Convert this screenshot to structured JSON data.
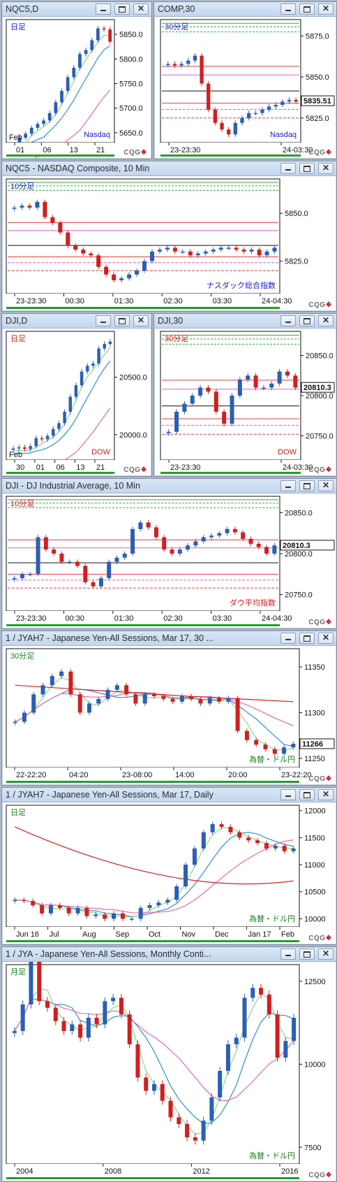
{
  "windows": [
    {
      "id": "nqc5d",
      "title": "NQC5,D",
      "period": "日足",
      "period_color": "#1a1ad6",
      "symbol_label": "Nasdaq",
      "symbol_color": "#1a1ad6",
      "y_ticks": [
        "5850.0",
        "5800.0",
        "5750.0",
        "5700.0",
        "5650.0"
      ],
      "x_ticks": [
        "01",
        "06",
        "13",
        "21"
      ],
      "x_sub": "Feb",
      "last": null
    },
    {
      "id": "comp30",
      "title": "COMP,30",
      "period": "30分足",
      "period_color": "#1a1ad6",
      "symbol_label": "Nasdaq",
      "symbol_color": "#1a1ad6",
      "y_ticks": [
        "5875.0",
        "5850.0",
        "5825.0"
      ],
      "x_ticks": [
        "23-23:30",
        "24-03:30"
      ],
      "last": "5835.51"
    },
    {
      "id": "nqc5-10",
      "title": "NQC5 - NASDAQ Composite, 10 Min",
      "period": "10分足",
      "period_color": "#1a1ad6",
      "symbol_label": "ナスダック総合指数",
      "symbol_color": "#1a1ad6",
      "y_ticks": [
        "5850.0",
        "5825.0"
      ],
      "x_ticks": [
        "23-23:30",
        "00:30",
        "01:30",
        "02:30",
        "03:30",
        "24-04:30"
      ],
      "last": null
    },
    {
      "id": "djid",
      "title": "DJI,D",
      "period": "日足",
      "period_color": "#d21a1a",
      "symbol_label": "DOW",
      "symbol_color": "#d21a1a",
      "y_ticks": [
        "20500.0",
        "20000.0"
      ],
      "x_ticks": [
        "30",
        "01",
        "06",
        "13",
        "21"
      ],
      "x_sub": "Feb",
      "last": null
    },
    {
      "id": "dji30",
      "title": "DJI,30",
      "period": "30分足",
      "period_color": "#d21a1a",
      "symbol_label": "DOW",
      "symbol_color": "#d21a1a",
      "y_ticks": [
        "20850.0",
        "20800.0",
        "20750.0"
      ],
      "x_ticks": [
        "23-23:30",
        "24-03:30"
      ],
      "last": "20810.3"
    },
    {
      "id": "dji10",
      "title": "DJI - DJ Industrial Average, 10 Min",
      "period": "10分足",
      "period_color": "#d21a1a",
      "symbol_label": "ダウ平均指数",
      "symbol_color": "#d21a1a",
      "y_ticks": [
        "20850.0",
        "20800.0",
        "20750.0"
      ],
      "x_ticks": [
        "23-23:30",
        "00:30",
        "01:30",
        "02:30",
        "03:30",
        "24-04:30"
      ],
      "last": "20810.3"
    },
    {
      "id": "jyah7-30",
      "title": "1 / JYAH7 - Japanese Yen-All Sessions, Mar 17, 30 ...",
      "period": "30分足",
      "period_color": "#16801f",
      "symbol_label": "為替・ドル円",
      "symbol_color": "#16801f",
      "y_ticks": [
        "11350",
        "11300",
        "11250"
      ],
      "x_ticks": [
        "22-22:20",
        "04:20",
        "23-08:00",
        "14:00",
        "20:00",
        "23-22:20"
      ],
      "last": "11266"
    },
    {
      "id": "jyah7-d",
      "title": "1 / JYAH7 - Japanese Yen-All Sessions, Mar 17, Daily",
      "period": "日足",
      "period_color": "#16801f",
      "symbol_label": "為替・ドル円",
      "symbol_color": "#16801f",
      "y_ticks": [
        "12000",
        "11500",
        "11000",
        "10500",
        "10000"
      ],
      "x_ticks": [
        "Jun 16",
        "Jul",
        "Aug",
        "Sep",
        "Oct",
        "Nov",
        "Dec",
        "Jan 17",
        "Feb"
      ],
      "last": null
    },
    {
      "id": "jya-m",
      "title": "1 / JYA - Japanese Yen-All Sessions, Monthly Conti...",
      "period": "月足",
      "period_color": "#16801f",
      "symbol_label": "為替・ドル円",
      "symbol_color": "#16801f",
      "y_ticks": [
        "12500",
        "10000",
        "7500"
      ],
      "x_ticks": [
        "2004",
        "2008",
        "2012",
        "2016"
      ],
      "last": null
    }
  ],
  "brand": {
    "text": "CQG",
    "accent": "#d21f2f"
  },
  "chart_data": [
    {
      "type": "candlestick",
      "window": "NQC5,D",
      "ylim": [
        5630,
        5880
      ],
      "x": [
        "Jan 31",
        "Feb 01",
        "Feb 02",
        "Feb 03",
        "Feb 06",
        "Feb 07",
        "Feb 08",
        "Feb 09",
        "Feb 10",
        "Feb 13",
        "Feb 14",
        "Feb 15",
        "Feb 16",
        "Feb 17",
        "Feb 21",
        "Feb 22",
        "Feb 23"
      ],
      "close": [
        5615,
        5640,
        5648,
        5660,
        5668,
        5675,
        5690,
        5712,
        5735,
        5763,
        5782,
        5810,
        5818,
        5838,
        5862,
        5860,
        5835
      ]
    },
    {
      "type": "candlestick",
      "window": "COMP,30",
      "ylim": [
        5810,
        5885
      ],
      "x_ticks": [
        "23-23:30",
        "24-03:30"
      ],
      "close": [
        5858,
        5857,
        5858,
        5860,
        5863,
        5846,
        5830,
        5822,
        5818,
        5815,
        5822,
        5825,
        5828,
        5828,
        5830,
        5832,
        5833,
        5835,
        5836,
        5835
      ]
    },
    {
      "type": "candlestick",
      "window": "NQC5 - NASDAQ Composite, 10 Min",
      "ylim": [
        5808,
        5868
      ],
      "close": [
        5853,
        5854,
        5853,
        5856,
        5848,
        5845,
        5840,
        5833,
        5831,
        5829,
        5828,
        5822,
        5818,
        5815,
        5816,
        5818,
        5820,
        5825,
        5830,
        5831,
        5832,
        5830,
        5830,
        5828,
        5829,
        5830,
        5831,
        5832,
        5832,
        5831,
        5830,
        5831,
        5828,
        5830,
        5832
      ]
    },
    {
      "type": "candlestick",
      "window": "DJI,D",
      "ylim": [
        19780,
        20900
      ],
      "x": [
        "Jan 30",
        "Jan 31",
        "Feb 01",
        "Feb 02",
        "Feb 03",
        "Feb 06",
        "Feb 07",
        "Feb 08",
        "Feb 09",
        "Feb 10",
        "Feb 13",
        "Feb 14",
        "Feb 15",
        "Feb 16",
        "Feb 17",
        "Feb 21",
        "Feb 22",
        "Feb 23"
      ],
      "close": [
        19880,
        19890,
        19875,
        19900,
        19970,
        19960,
        19990,
        20050,
        20100,
        20200,
        20330,
        20430,
        20550,
        20600,
        20620,
        20750,
        20790,
        20810
      ]
    },
    {
      "type": "candlestick",
      "window": "DJI,30",
      "ylim": [
        20720,
        20880
      ],
      "x_ticks": [
        "23-23:30",
        "24-03:30"
      ],
      "close": [
        20755,
        20780,
        20790,
        20800,
        20810,
        20805,
        20780,
        20765,
        20800,
        20820,
        20825,
        20810,
        20810,
        20815,
        20830,
        20825,
        20810
      ]
    },
    {
      "type": "candlestick",
      "window": "DJI - DJ Industrial Average, 10 Min",
      "ylim": [
        20730,
        20870
      ],
      "close": [
        20770,
        20775,
        20775,
        20820,
        20805,
        20800,
        20790,
        20790,
        20785,
        20765,
        20760,
        20770,
        20790,
        20795,
        20800,
        20830,
        20838,
        20832,
        20820,
        20805,
        20800,
        20805,
        20810,
        20815,
        20820,
        20822,
        20825,
        20830,
        20826,
        20818,
        20812,
        20808,
        20800,
        20810
      ]
    },
    {
      "type": "candlestick",
      "window": "1 / JYAH7 30 Min",
      "ylim": [
        11240,
        11370
      ],
      "close": [
        11290,
        11300,
        11320,
        11330,
        11340,
        11345,
        11320,
        11300,
        11310,
        11315,
        11325,
        11330,
        11320,
        11310,
        11320,
        11318,
        11315,
        11312,
        11318,
        11315,
        11310,
        11316,
        11312,
        11316,
        11280,
        11270,
        11265,
        11260,
        11255,
        11262,
        11266
      ]
    },
    {
      "type": "candlestick",
      "window": "1 / JYAH7 Daily",
      "ylim": [
        9850,
        12100
      ],
      "close": [
        10350,
        10330,
        10250,
        10100,
        10250,
        10200,
        10100,
        10200,
        10050,
        10080,
        10000,
        10100,
        10000,
        10000,
        10200,
        10250,
        10300,
        10350,
        10600,
        11000,
        11300,
        11600,
        11750,
        11700,
        11600,
        11500,
        11450,
        11400,
        11300,
        11350,
        11250,
        11300
      ]
    },
    {
      "type": "candlestick",
      "window": "1 / JYA Monthly",
      "ylim": [
        7000,
        13000
      ],
      "close": [
        11000,
        11800,
        13100,
        11900,
        11700,
        11300,
        11000,
        11200,
        10800,
        11400,
        11200,
        11900,
        12000,
        11500,
        10600,
        9600,
        9200,
        9400,
        8900,
        8400,
        8200,
        7800,
        7700,
        8300,
        9000,
        9800,
        10600,
        10800,
        12000,
        12300,
        12100,
        11500,
        10200,
        10700,
        11400
      ]
    }
  ]
}
